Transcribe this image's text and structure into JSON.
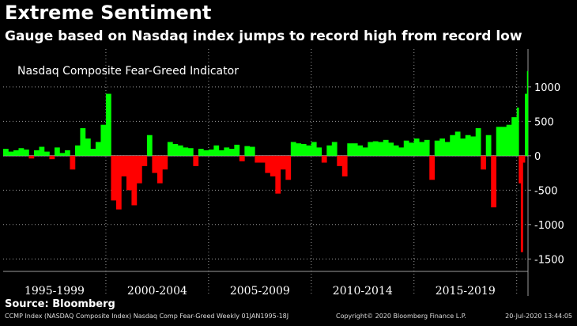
{
  "header": {
    "title": "Extreme Sentiment",
    "subtitle": "Gauge based on Nasdaq index jumps to record high from record low"
  },
  "source": "Source: Bloomberg",
  "footer": {
    "left": "CCMP Index (NASDAQ Composite Index) Nasdaq Comp Fear-Greed  Weekly 01JAN1995-18J",
    "middle": "Copyright© 2020 Bloomberg Finance L.P.",
    "right": "20-Jul-2020 13:44:05"
  },
  "colors": {
    "background": "#000000",
    "positive": "#00ff00",
    "negative": "#ff0000",
    "grid": "#9a9a9a",
    "text": "#ffffff"
  },
  "chart_data": {
    "type": "bar",
    "label": "Nasdaq Composite Fear-Greed Indicator",
    "x_range": [
      1995.0,
      2020.55
    ],
    "ylim": [
      -1600,
      1550
    ],
    "y_ticks": [
      1000,
      500,
      0,
      -500,
      -1000,
      -1500
    ],
    "y_tick_labels": [
      "1000",
      "500",
      "0",
      "-500",
      "-1000",
      "-1500"
    ],
    "grid": true,
    "axis_position": "right",
    "period_labels": [
      "1995-1999",
      "2000-2004",
      "2005-2009",
      "2010-2014",
      "2015-2019"
    ],
    "period_bounds": [
      [
        1995,
        2000
      ],
      [
        2000,
        2005
      ],
      [
        2005,
        2010
      ],
      [
        2010,
        2015
      ],
      [
        2015,
        2020
      ]
    ],
    "series": [
      {
        "x": [
          1995.0,
          1995.25,
          1995.5,
          1995.75,
          1996.0,
          1996.25,
          1996.5,
          1996.75,
          1997.0,
          1997.25,
          1997.5,
          1997.75,
          1998.0,
          1998.25,
          1998.5,
          1998.75,
          1999.0,
          1999.25,
          1999.5,
          1999.75,
          2000.0,
          2000.25,
          2000.5,
          2000.75,
          2001.0,
          2001.25,
          2001.5,
          2001.75,
          2002.0,
          2002.25,
          2002.5,
          2002.75,
          2003.0,
          2003.25,
          2003.5,
          2003.75,
          2004.0,
          2004.25,
          2004.5,
          2004.75,
          2005.0,
          2005.25,
          2005.5,
          2005.75,
          2006.0,
          2006.25,
          2006.5,
          2006.75,
          2007.0,
          2007.25,
          2007.5,
          2007.75,
          2008.0,
          2008.25,
          2008.5,
          2008.75,
          2009.0,
          2009.25,
          2009.5,
          2009.75,
          2010.0,
          2010.25,
          2010.5,
          2010.75,
          2011.0,
          2011.25,
          2011.5,
          2011.75,
          2012.0,
          2012.25,
          2012.5,
          2012.75,
          2013.0,
          2013.25,
          2013.5,
          2013.75,
          2014.0,
          2014.25,
          2014.5,
          2014.75,
          2015.0,
          2015.25,
          2015.5,
          2015.75,
          2016.0,
          2016.25,
          2016.5,
          2016.75,
          2017.0,
          2017.25,
          2017.5,
          2017.75,
          2018.0,
          2018.25,
          2018.5,
          2018.75,
          2019.0,
          2019.25,
          2019.5,
          2019.75,
          2020.0,
          2020.1,
          2020.2,
          2020.3,
          2020.4,
          2020.5
        ],
        "values": [
          100,
          60,
          80,
          110,
          90,
          -40,
          80,
          130,
          60,
          -50,
          120,
          40,
          80,
          -200,
          150,
          400,
          250,
          100,
          200,
          450,
          900,
          -650,
          -780,
          -300,
          -500,
          -720,
          -400,
          -150,
          300,
          -250,
          -400,
          -200,
          200,
          170,
          150,
          120,
          110,
          -150,
          100,
          80,
          90,
          150,
          80,
          120,
          100,
          160,
          -80,
          140,
          130,
          -100,
          -100,
          -250,
          -300,
          -550,
          -200,
          -350,
          200,
          180,
          170,
          150,
          200,
          120,
          -100,
          150,
          200,
          -150,
          -300,
          180,
          180,
          150,
          120,
          200,
          210,
          200,
          230,
          190,
          150,
          120,
          220,
          190,
          250,
          200,
          230,
          -350,
          220,
          250,
          200,
          300,
          350,
          250,
          300,
          280,
          400,
          -200,
          300,
          -750,
          420,
          420,
          450,
          560,
          700,
          -400,
          -1400,
          -100,
          900,
          1230
        ]
      }
    ]
  }
}
